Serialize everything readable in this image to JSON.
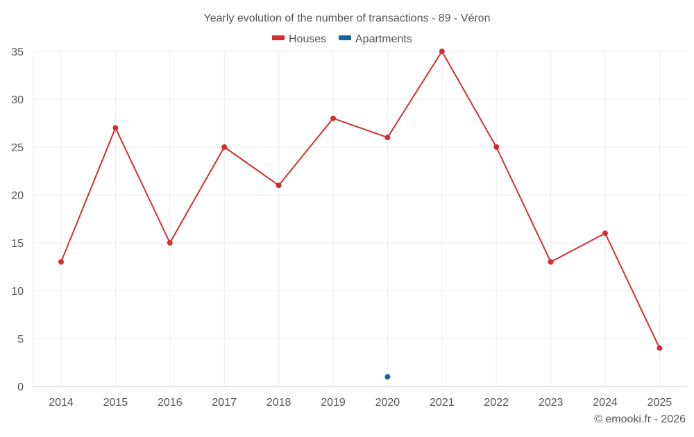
{
  "chart_data": {
    "type": "line",
    "title": "Yearly evolution of the number of transactions - 89 - Véron",
    "categories": [
      "2014",
      "2015",
      "2016",
      "2017",
      "2018",
      "2019",
      "2020",
      "2021",
      "2022",
      "2023",
      "2024",
      "2025"
    ],
    "ylim": [
      0,
      35
    ],
    "yticks": [
      0,
      5,
      10,
      15,
      20,
      25,
      30,
      35
    ],
    "grid": true,
    "legend_position": "top-center",
    "series": [
      {
        "name": "Houses",
        "color": "#d32f2f",
        "values": [
          13,
          27,
          15,
          25,
          21,
          28,
          26,
          35,
          25,
          13,
          16,
          4
        ]
      },
      {
        "name": "Apartments",
        "color": "#1565a0",
        "values": [
          null,
          null,
          null,
          null,
          null,
          null,
          1,
          null,
          null,
          null,
          null,
          null
        ]
      }
    ],
    "credit": "© emooki.fr - 2026"
  }
}
